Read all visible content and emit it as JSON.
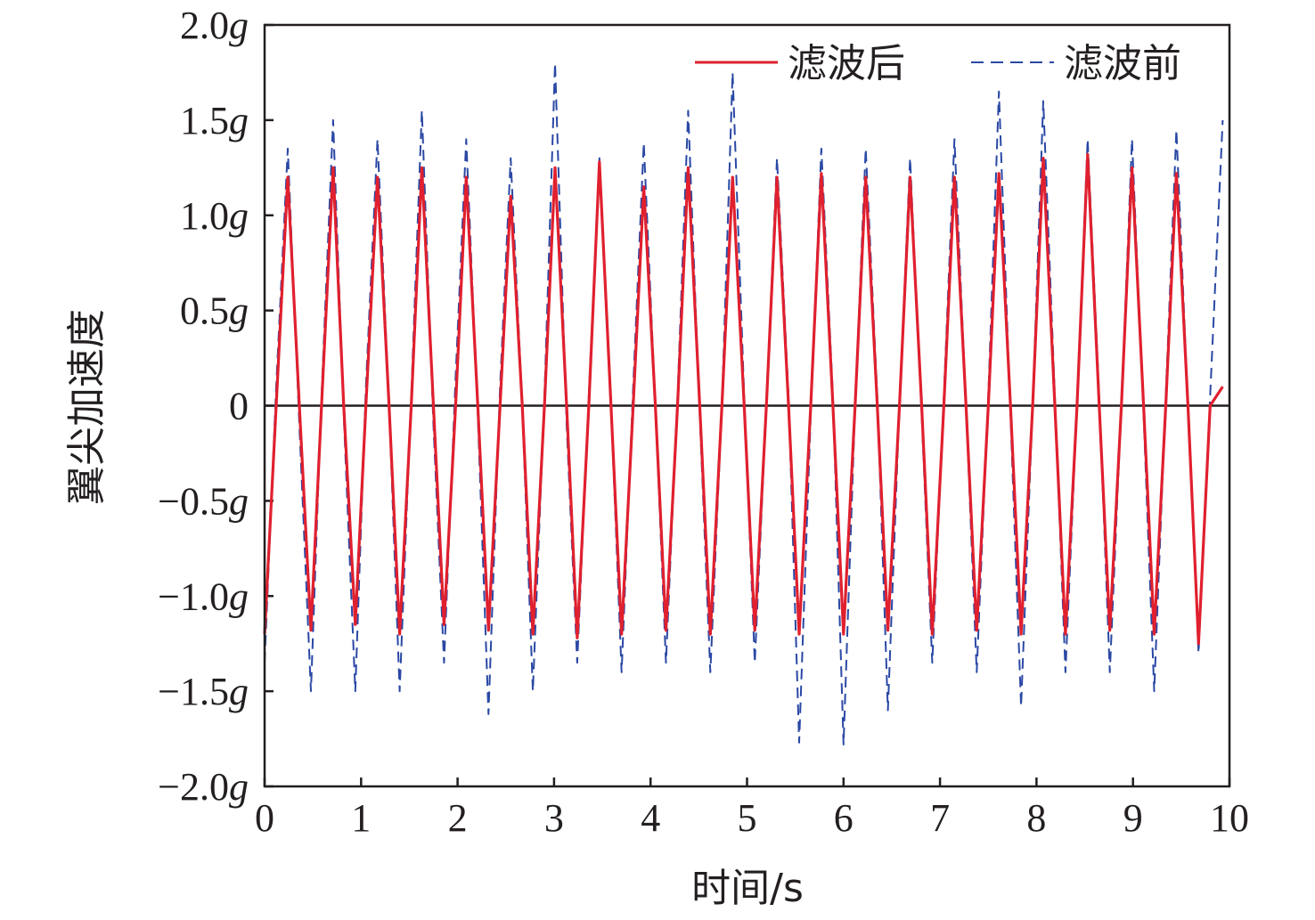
{
  "chart_data": {
    "type": "line",
    "title": "",
    "xlabel": "时间/s",
    "ylabel": "翼尖加速度",
    "xlim": [
      0,
      10
    ],
    "ylim": [
      -2.0,
      2.0
    ],
    "x_ticks": [
      {
        "value": 0,
        "label": "0"
      },
      {
        "value": 1,
        "label": "1"
      },
      {
        "value": 2,
        "label": "2"
      },
      {
        "value": 3,
        "label": "3"
      },
      {
        "value": 4,
        "label": "4"
      },
      {
        "value": 5,
        "label": "5"
      },
      {
        "value": 6,
        "label": "6"
      },
      {
        "value": 7,
        "label": "7"
      },
      {
        "value": 8,
        "label": "8"
      },
      {
        "value": 9,
        "label": "9"
      },
      {
        "value": 10,
        "label": "10"
      }
    ],
    "y_ticks": [
      {
        "value": 2.0,
        "num": "2.0",
        "unit": "g"
      },
      {
        "value": 1.5,
        "num": "1.5",
        "unit": "g"
      },
      {
        "value": 1.0,
        "num": "1.0",
        "unit": "g"
      },
      {
        "value": 0.5,
        "num": "0.5",
        "unit": "g"
      },
      {
        "value": 0,
        "num": "0",
        "unit": ""
      },
      {
        "value": -0.5,
        "num": "−0.5",
        "unit": "g"
      },
      {
        "value": -1.0,
        "num": "−1.0",
        "unit": "g"
      },
      {
        "value": -1.5,
        "num": "−1.5",
        "unit": "g"
      },
      {
        "value": -2.0,
        "num": "−2.0",
        "unit": "g"
      }
    ],
    "zero_line": true,
    "legend": {
      "position": "top-right"
    },
    "series": [
      {
        "name": "滤波后",
        "color": "#e0202e",
        "style": "solid",
        "x": [
          0.0,
          0.12,
          0.24,
          0.36,
          0.48,
          0.59,
          0.71,
          0.82,
          0.94,
          1.05,
          1.17,
          1.29,
          1.4,
          1.52,
          1.63,
          1.75,
          1.86,
          1.98,
          2.09,
          2.21,
          2.32,
          2.44,
          2.55,
          2.67,
          2.78,
          2.9,
          3.01,
          3.13,
          3.24,
          3.36,
          3.47,
          3.59,
          3.7,
          3.82,
          3.93,
          4.05,
          4.16,
          4.28,
          4.39,
          4.51,
          4.62,
          4.74,
          4.85,
          4.97,
          5.08,
          5.2,
          5.31,
          5.43,
          5.54,
          5.66,
          5.77,
          5.89,
          6.0,
          6.12,
          6.23,
          6.35,
          6.46,
          6.58,
          6.69,
          6.81,
          6.92,
          7.04,
          7.15,
          7.27,
          7.38,
          7.5,
          7.61,
          7.73,
          7.84,
          7.96,
          8.07,
          8.19,
          8.3,
          8.42,
          8.53,
          8.65,
          8.76,
          8.88,
          8.99,
          9.11,
          9.22,
          9.34,
          9.45,
          9.57,
          9.68,
          9.8,
          9.93
        ],
        "y": [
          -1.2,
          0.0,
          1.2,
          0.0,
          -1.18,
          0.0,
          1.25,
          0.0,
          -1.15,
          0.0,
          1.2,
          0.0,
          -1.2,
          0.0,
          1.25,
          0.0,
          -1.15,
          0.0,
          1.2,
          0.0,
          -1.18,
          0.0,
          1.1,
          0.0,
          -1.2,
          0.0,
          1.25,
          0.0,
          -1.22,
          0.0,
          1.28,
          0.0,
          -1.2,
          0.0,
          1.15,
          0.0,
          -1.18,
          0.0,
          1.25,
          0.0,
          -1.2,
          0.0,
          1.2,
          0.0,
          -1.18,
          0.0,
          1.2,
          0.0,
          -1.2,
          0.0,
          1.22,
          0.0,
          -1.2,
          0.0,
          1.2,
          0.0,
          -1.18,
          0.0,
          1.2,
          0.0,
          -1.2,
          0.0,
          1.2,
          0.0,
          -1.18,
          0.0,
          1.22,
          0.0,
          -1.2,
          0.0,
          1.3,
          0.0,
          -1.2,
          0.0,
          1.32,
          0.0,
          -1.18,
          0.0,
          1.25,
          0.0,
          -1.2,
          0.0,
          1.22,
          0.0,
          -1.25,
          0.0,
          0.1
        ]
      },
      {
        "name": "滤波前",
        "color": "#2a48a4",
        "style": "dashed",
        "x": [
          0.0,
          0.12,
          0.24,
          0.36,
          0.48,
          0.59,
          0.71,
          0.82,
          0.94,
          1.05,
          1.17,
          1.29,
          1.4,
          1.52,
          1.63,
          1.75,
          1.86,
          1.98,
          2.09,
          2.21,
          2.32,
          2.44,
          2.55,
          2.67,
          2.78,
          2.9,
          3.01,
          3.13,
          3.24,
          3.36,
          3.47,
          3.59,
          3.7,
          3.82,
          3.93,
          4.05,
          4.16,
          4.28,
          4.39,
          4.51,
          4.62,
          4.74,
          4.85,
          4.97,
          5.08,
          5.2,
          5.31,
          5.43,
          5.54,
          5.66,
          5.77,
          5.89,
          6.0,
          6.12,
          6.23,
          6.35,
          6.46,
          6.58,
          6.69,
          6.81,
          6.92,
          7.04,
          7.15,
          7.27,
          7.38,
          7.5,
          7.61,
          7.73,
          7.84,
          7.96,
          8.07,
          8.19,
          8.3,
          8.42,
          8.53,
          8.65,
          8.76,
          8.88,
          8.99,
          9.11,
          9.22,
          9.34,
          9.45,
          9.57,
          9.68,
          9.8,
          9.93
        ],
        "y": [
          -1.35,
          0.1,
          1.35,
          -0.1,
          -1.5,
          0.05,
          1.5,
          -0.05,
          -1.5,
          0.1,
          1.4,
          0.0,
          -1.5,
          0.05,
          1.55,
          -0.1,
          -1.35,
          0.15,
          1.4,
          -0.05,
          -1.62,
          0.1,
          1.3,
          0.0,
          -1.5,
          0.05,
          1.8,
          -0.1,
          -1.35,
          0.05,
          1.3,
          0.0,
          -1.4,
          0.1,
          1.38,
          0.0,
          -1.35,
          0.05,
          1.55,
          -0.05,
          -1.4,
          0.0,
          1.75,
          0.05,
          -1.35,
          0.0,
          1.3,
          0.05,
          -1.77,
          -0.05,
          1.35,
          0.05,
          -1.78,
          0.0,
          1.35,
          0.05,
          -1.6,
          0.0,
          1.3,
          -0.05,
          -1.35,
          0.05,
          1.4,
          0.0,
          -1.4,
          0.05,
          1.65,
          -0.05,
          -1.58,
          0.0,
          1.6,
          0.05,
          -1.4,
          0.0,
          1.4,
          0.05,
          -1.4,
          0.0,
          1.4,
          -0.05,
          -1.5,
          0.05,
          1.45,
          0.0,
          -1.3,
          0.05,
          1.5
        ]
      }
    ]
  }
}
